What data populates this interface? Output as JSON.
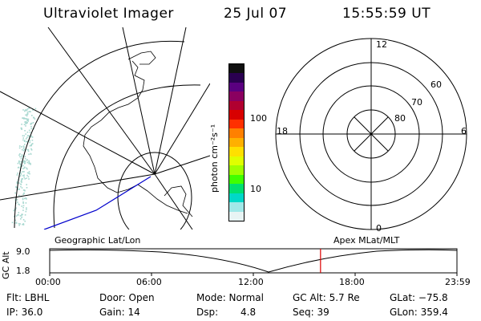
{
  "header": {
    "title": "Ultraviolet Imager",
    "date": "25 Jul 07",
    "time": "15:55:59 UT"
  },
  "colorbar": {
    "unit_label": "photon cm⁻²s⁻¹",
    "ticks": [
      "100",
      "10"
    ],
    "colors": [
      "#101010",
      "#2a0050",
      "#5a0080",
      "#8a0060",
      "#b00030",
      "#d80000",
      "#ff3000",
      "#ff8000",
      "#ffb000",
      "#ffe000",
      "#e0ff00",
      "#a0ff00",
      "#40ff00",
      "#00e070",
      "#00d8c8",
      "#a0e8e8",
      "#e8f4f4"
    ]
  },
  "polar_plot": {
    "mlt_labels": {
      "top": "12",
      "left": "18",
      "right": "6",
      "bottom": "0"
    },
    "lat_labels": [
      "60",
      "70",
      "80"
    ]
  },
  "strip": {
    "left_label": "Geographic Lat/Lon",
    "right_label": "Apex MLat/MLT",
    "axis_title": "GC Alt",
    "y_ticks": [
      "9.0",
      "1.8"
    ],
    "time_ticks": [
      "00:00",
      "06:00",
      "12:00",
      "18:00",
      "23:59"
    ],
    "current_time_fraction": 0.665
  },
  "info": {
    "flt": "Flt: LBHL",
    "door": "Door: Open",
    "mode": "Mode: Normal",
    "gc_alt": "GC Alt: 5.7 Re",
    "glat": "GLat: −75.8",
    "ip": "IP: 36.0",
    "gain": "Gain: 14",
    "dsp_label": "Dsp:",
    "dsp_value": "4.8",
    "seq": "Seq: 39",
    "glon": "GLon: 359.4"
  },
  "colors": {
    "grid": "#000000",
    "track": "#0000cc",
    "marker": "#dd0000",
    "aurora": "#a8d8d0"
  }
}
